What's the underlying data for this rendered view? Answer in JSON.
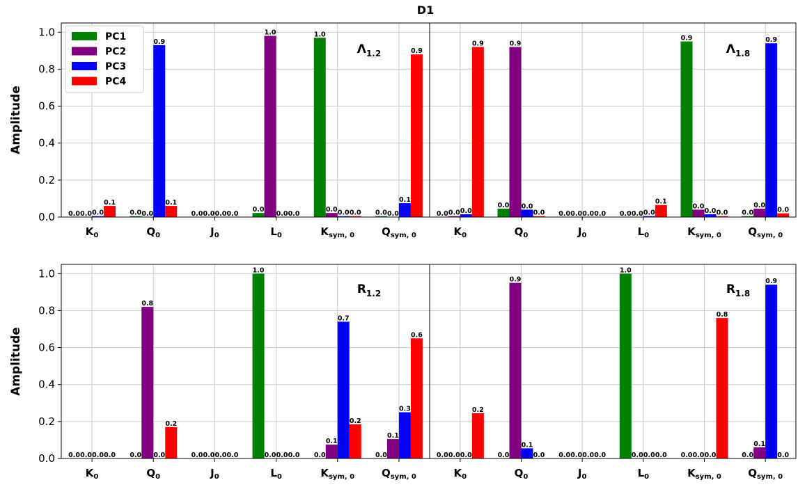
{
  "figure_title": "D1",
  "colors": {
    "PC1": "#008000",
    "PC2": "#800080",
    "PC3": "#0000ff",
    "PC4": "#ff0000"
  },
  "legend": {
    "placement": "top-left",
    "entries": [
      "PC1",
      "PC2",
      "PC3",
      "PC4"
    ]
  },
  "chart_data": [
    {
      "type": "bar",
      "panel_label": {
        "main": "Λ",
        "sub": "1.2"
      },
      "ylabel": "Amplitude",
      "ylim": [
        0,
        1.05
      ],
      "yticks": [
        "0.0",
        "0.2",
        "0.4",
        "0.6",
        "0.8",
        "1.0"
      ],
      "grid": true,
      "categories": [
        {
          "main": "K",
          "sub": "0"
        },
        {
          "main": "Q",
          "sub": "0"
        },
        {
          "main": "J",
          "sub": "0"
        },
        {
          "main": "L",
          "sub": "0"
        },
        {
          "main": "K",
          "sub": "sym, 0"
        },
        {
          "main": "Q",
          "sub": "sym, 0"
        }
      ],
      "series": [
        {
          "name": "PC1",
          "values": [
            0.0,
            0.005,
            0.0,
            0.022,
            0.97,
            0.005
          ]
        },
        {
          "name": "PC2",
          "values": [
            0.0,
            0.0,
            0.0,
            0.98,
            0.022,
            0.0
          ]
        },
        {
          "name": "PC3",
          "values": [
            0.005,
            0.93,
            0.0,
            0.0,
            0.005,
            0.075
          ]
        },
        {
          "name": "PC4",
          "values": [
            0.06,
            0.06,
            0.0,
            0.0,
            0.005,
            0.88
          ]
        }
      ],
      "data_labels": [
        [
          "0.0",
          "0.0",
          "0.0",
          "0.1"
        ],
        [
          "0.0",
          "0.0",
          "0.9",
          "0.1"
        ],
        [
          "0.0",
          "0.0",
          "0.0",
          "0.0"
        ],
        [
          "0.0",
          "1.0",
          "0.0",
          "0.0"
        ],
        [
          "1.0",
          "0.0",
          "0.0",
          "0.0"
        ],
        [
          "0.0",
          "0.0",
          "0.1",
          "0.9"
        ]
      ]
    },
    {
      "type": "bar",
      "panel_label": {
        "main": "Λ",
        "sub": "1.8"
      },
      "ylabel": "",
      "ylim": [
        0,
        1.05
      ],
      "yticks": [],
      "grid": true,
      "categories": [
        {
          "main": "K",
          "sub": "0"
        },
        {
          "main": "Q",
          "sub": "0"
        },
        {
          "main": "J",
          "sub": "0"
        },
        {
          "main": "L",
          "sub": "0"
        },
        {
          "main": "K",
          "sub": "sym, 0"
        },
        {
          "main": "Q",
          "sub": "sym, 0"
        }
      ],
      "series": [
        {
          "name": "PC1",
          "values": [
            0.0,
            0.045,
            0.0,
            0.0,
            0.95,
            0.005
          ]
        },
        {
          "name": "PC2",
          "values": [
            0.005,
            0.92,
            0.0,
            0.0,
            0.04,
            0.045
          ]
        },
        {
          "name": "PC3",
          "values": [
            0.015,
            0.04,
            0.0,
            0.005,
            0.015,
            0.94
          ]
        },
        {
          "name": "PC4",
          "values": [
            0.92,
            0.005,
            0.0,
            0.065,
            0.005,
            0.02
          ]
        }
      ],
      "data_labels": [
        [
          "0.0",
          "0.0",
          "0.0",
          "0.9"
        ],
        [
          "0.0",
          "0.9",
          "0.0",
          "0.0"
        ],
        [
          "0.0",
          "0.0",
          "0.0",
          "0.0"
        ],
        [
          "0.0",
          "0.0",
          "0.0",
          "0.1"
        ],
        [
          "0.9",
          "0.0",
          "0.0",
          "0.0"
        ],
        [
          "0.0",
          "0.0",
          "0.9",
          "0.0"
        ]
      ]
    },
    {
      "type": "bar",
      "panel_label": {
        "main": "R",
        "sub": "1.2"
      },
      "ylabel": "Amplitude",
      "ylim": [
        0,
        1.05
      ],
      "yticks": [
        "0.0",
        "0.2",
        "0.4",
        "0.6",
        "0.8",
        "1.0"
      ],
      "grid": true,
      "categories": [
        {
          "main": "K",
          "sub": "0"
        },
        {
          "main": "Q",
          "sub": "0"
        },
        {
          "main": "J",
          "sub": "0"
        },
        {
          "main": "L",
          "sub": "0"
        },
        {
          "main": "K",
          "sub": "sym, 0"
        },
        {
          "main": "Q",
          "sub": "sym, 0"
        }
      ],
      "series": [
        {
          "name": "PC1",
          "values": [
            0.0,
            0.0,
            0.0,
            1.0,
            0.0,
            0.0
          ]
        },
        {
          "name": "PC2",
          "values": [
            0.0,
            0.82,
            0.0,
            0.0,
            0.075,
            0.105
          ]
        },
        {
          "name": "PC3",
          "values": [
            0.0,
            0.0,
            0.0,
            0.0,
            0.74,
            0.25
          ]
        },
        {
          "name": "PC4",
          "values": [
            0.0,
            0.17,
            0.0,
            0.0,
            0.185,
            0.65
          ]
        }
      ],
      "data_labels": [
        [
          "0.0",
          "0.0",
          "0.0",
          "0.0"
        ],
        [
          "0.0",
          "0.8",
          "0.0",
          "0.2"
        ],
        [
          "0.0",
          "0.0",
          "0.0",
          "0.0"
        ],
        [
          "1.0",
          "0.0",
          "0.0",
          "0.0"
        ],
        [
          "0.0",
          "0.1",
          "0.7",
          "0.2"
        ],
        [
          "0.0",
          "0.1",
          "0.3",
          "0.6"
        ]
      ]
    },
    {
      "type": "bar",
      "panel_label": {
        "main": "R",
        "sub": "1.8"
      },
      "ylabel": "",
      "ylim": [
        0,
        1.05
      ],
      "yticks": [],
      "grid": true,
      "categories": [
        {
          "main": "K",
          "sub": "0"
        },
        {
          "main": "Q",
          "sub": "0"
        },
        {
          "main": "J",
          "sub": "0"
        },
        {
          "main": "L",
          "sub": "0"
        },
        {
          "main": "K",
          "sub": "sym, 0"
        },
        {
          "main": "Q",
          "sub": "sym, 0"
        }
      ],
      "series": [
        {
          "name": "PC1",
          "values": [
            0.0,
            0.0,
            0.0,
            1.0,
            0.0,
            0.0
          ]
        },
        {
          "name": "PC2",
          "values": [
            0.0,
            0.95,
            0.0,
            0.0,
            0.0,
            0.06
          ]
        },
        {
          "name": "PC3",
          "values": [
            0.0,
            0.055,
            0.0,
            0.0,
            0.0,
            0.94
          ]
        },
        {
          "name": "PC4",
          "values": [
            0.245,
            0.0,
            0.0,
            0.0,
            0.76,
            0.0
          ]
        }
      ],
      "data_labels": [
        [
          "0.0",
          "0.0",
          "0.0",
          "0.2"
        ],
        [
          "0.0",
          "0.9",
          "0.1",
          "0.0"
        ],
        [
          "0.0",
          "0.0",
          "0.0",
          "0.0"
        ],
        [
          "1.0",
          "0.0",
          "0.0",
          "0.0"
        ],
        [
          "0.0",
          "0.0",
          "0.0",
          "0.8"
        ],
        [
          "0.0",
          "0.1",
          "0.9",
          "0.0"
        ]
      ]
    }
  ]
}
